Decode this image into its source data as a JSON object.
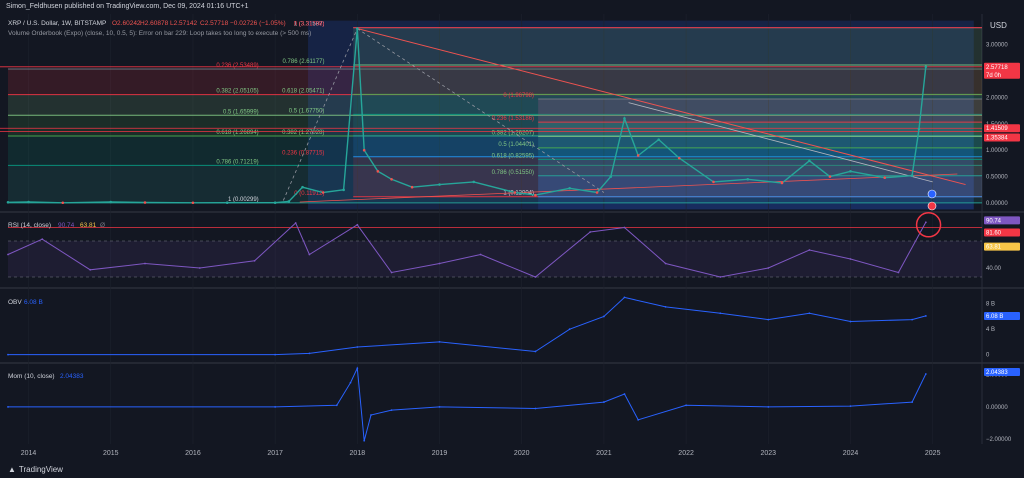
{
  "header": {
    "publish_line": "Simon_Feldhusen published on TradingView.com, Dec 09, 2024 01:16 UTC+1",
    "symbol_line": "XRP / U.S. Dollar, 1W, BITSTAMP",
    "o": "O2.60242",
    "h": "H2.60878",
    "l": "L2.57142",
    "c": "C2.57718",
    "chg": "−0.02726 (−1.05%)",
    "indicator_line": "Volume Orderbook (Expo) (close, 10, 0.5, 5): Error on bar 229: Loop takes too long to execute (> 500 ms)"
  },
  "footer": {
    "brand": "TradingView"
  },
  "colors": {
    "bg": "#131722",
    "up": "#26a69a",
    "down": "#ef5350",
    "rsi": "#7e57c2",
    "obv": "#2962ff",
    "mom": "#2962ff",
    "accent_red": "#f23645"
  },
  "chart_data": [
    {
      "type": "line",
      "name": "price",
      "title": "XRP / U.S. Dollar, 1W, BITSTAMP",
      "x": [
        "2013-10",
        "2014-01",
        "2014-06",
        "2015-01",
        "2015-06",
        "2016-01",
        "2016-06",
        "2017-01",
        "2017-03",
        "2017-05",
        "2017-08",
        "2017-11",
        "2018-01",
        "2018-02",
        "2018-04",
        "2018-06",
        "2018-09",
        "2019-01",
        "2019-06",
        "2019-12",
        "2020-03",
        "2020-08",
        "2020-12",
        "2021-02",
        "2021-04",
        "2021-06",
        "2021-09",
        "2021-12",
        "2022-05",
        "2022-10",
        "2023-03",
        "2023-07",
        "2023-10",
        "2024-01",
        "2024-06",
        "2024-10",
        "2024-11",
        "2024-12"
      ],
      "y": [
        0.015,
        0.02,
        0.006,
        0.02,
        0.01,
        0.006,
        0.007,
        0.007,
        0.03,
        0.3,
        0.2,
        0.25,
        3.3,
        1.0,
        0.6,
        0.45,
        0.3,
        0.35,
        0.4,
        0.2,
        0.15,
        0.28,
        0.2,
        0.5,
        1.6,
        0.9,
        1.2,
        0.85,
        0.4,
        0.45,
        0.38,
        0.8,
        0.5,
        0.6,
        0.48,
        0.52,
        1.4,
        2.57718
      ],
      "ylim": [
        -0.15,
        3.5
      ],
      "y_ticks": [
        "3.00000",
        "2.50000",
        "2.00000",
        "1.50000",
        "1.00000",
        "0.50000",
        "0.00000"
      ],
      "x_ticks": [
        "2014",
        "2015",
        "2016",
        "2017",
        "2018",
        "2019",
        "2020",
        "2021",
        "2022",
        "2023",
        "2024",
        "2025"
      ],
      "axis_unit": "USD",
      "price_labels": [
        {
          "value": "2.57718",
          "sub": "7d 0h",
          "color": "#f23645"
        },
        {
          "value": "1.41509",
          "color": "#f23645"
        },
        {
          "value": "1.35384",
          "color": "#f23645"
        }
      ],
      "fib_sets": [
        {
          "name": "fib-a",
          "levels": [
            {
              "label": "0.236 (2.53489)",
              "value": 2.53489
            },
            {
              "label": "0.382 (2.05105)",
              "value": 2.05105
            },
            {
              "label": "0.5 (1.65999)",
              "value": 1.65999
            },
            {
              "label": "0.618 (1.26894)",
              "value": 1.26894
            },
            {
              "label": "0.786 (0.71219)",
              "value": 0.71219
            },
            {
              "label": "1 (0.00299)",
              "value": 0.00299
            }
          ]
        },
        {
          "name": "fib-b",
          "levels": [
            {
              "label": "1 (3.31587)",
              "value": 3.31587
            },
            {
              "label": "0 (3.31708)",
              "value": 3.31708
            },
            {
              "label": "0.786 (2.61177)",
              "value": 2.61177
            },
            {
              "label": "0.618 (2.05471)",
              "value": 2.05471
            },
            {
              "label": "0.5 (1.67750)",
              "value": 1.6775
            },
            {
              "label": "0.382 (1.27028)",
              "value": 1.27028
            },
            {
              "label": "0.236 (0.87715)",
              "value": 0.87715
            },
            {
              "label": "0 (0.11912)",
              "value": 0.11912
            }
          ]
        },
        {
          "name": "fib-c",
          "levels": [
            {
              "label": "0 (1.96798)",
              "value": 1.96798
            },
            {
              "label": "0.236 (1.53186)",
              "value": 1.53186
            },
            {
              "label": "0.382 (1.26207)",
              "value": 1.26207
            },
            {
              "label": "0.5 (1.04401)",
              "value": 1.04401
            },
            {
              "label": "0.618 (0.82595)",
              "value": 0.82595
            },
            {
              "label": "0.786 (0.51550)",
              "value": 0.5155
            },
            {
              "label": "1 (0.12004)",
              "value": 0.12004
            }
          ]
        }
      ]
    },
    {
      "type": "line",
      "name": "rsi",
      "title": "RSI (14, close)",
      "value_label": "90.74",
      "value_label_2": "63.81",
      "ma_label": "Ø",
      "ylim": [
        20,
        100
      ],
      "bands": {
        "upper": 70,
        "lower": 30
      },
      "y_ticks": [
        "40.00"
      ],
      "price_labels": [
        {
          "value": "90.74",
          "color": "#7e57c2"
        },
        {
          "value": "81.60",
          "color": "#f23645"
        },
        {
          "value": "63.81",
          "color": "#f7c548"
        }
      ],
      "x": [
        "2013-10",
        "2014-03",
        "2014-10",
        "2015-06",
        "2016-02",
        "2016-10",
        "2017-04",
        "2017-06",
        "2018-01",
        "2018-06",
        "2019-01",
        "2019-07",
        "2020-03",
        "2020-11",
        "2021-04",
        "2021-10",
        "2022-06",
        "2023-01",
        "2023-07",
        "2024-01",
        "2024-08",
        "2024-12"
      ],
      "y": [
        55,
        72,
        38,
        45,
        40,
        48,
        90,
        55,
        88,
        35,
        45,
        55,
        30,
        80,
        85,
        45,
        30,
        40,
        60,
        50,
        35,
        90.74
      ]
    },
    {
      "type": "line",
      "name": "obv",
      "title": "OBV",
      "value_label": "6.08 B",
      "ylim": [
        -1,
        10
      ],
      "y_ticks": [
        "8 B",
        "4 B",
        "0"
      ],
      "price_labels": [
        {
          "value": "6.08 B",
          "color": "#2962ff"
        }
      ],
      "x": [
        "2013-10",
        "2017-01",
        "2017-06",
        "2018-01",
        "2019-01",
        "2020-03",
        "2020-08",
        "2021-01",
        "2021-04",
        "2021-10",
        "2022-06",
        "2023-01",
        "2023-07",
        "2024-01",
        "2024-10",
        "2024-12"
      ],
      "y": [
        0,
        0,
        0.2,
        1.2,
        2,
        0.5,
        4,
        6,
        9,
        7.5,
        6.5,
        5.5,
        6.5,
        5.2,
        5.5,
        6.08
      ]
    },
    {
      "type": "line",
      "name": "mom",
      "title": "Mom (10, close)",
      "value_label": "2.04383",
      "ylim": [
        -2.3,
        2.6
      ],
      "y_ticks": [
        "2.00000",
        "0.00000",
        "−2.00000"
      ],
      "price_labels": [
        {
          "value": "2.04383",
          "color": "#2962ff"
        }
      ],
      "x": [
        "2013-10",
        "2017-01",
        "2017-10",
        "2017-12",
        "2018-01",
        "2018-02",
        "2018-03",
        "2018-06",
        "2019-01",
        "2020-03",
        "2021-01",
        "2021-04",
        "2021-06",
        "2022-01",
        "2023-01",
        "2024-01",
        "2024-10",
        "2024-12"
      ],
      "y": [
        0,
        0,
        0.1,
        1.5,
        2.4,
        -2.1,
        -0.5,
        -0.2,
        0,
        -0.1,
        0.3,
        0.8,
        -0.8,
        0.1,
        0,
        0.05,
        0.3,
        2.04383
      ]
    }
  ]
}
